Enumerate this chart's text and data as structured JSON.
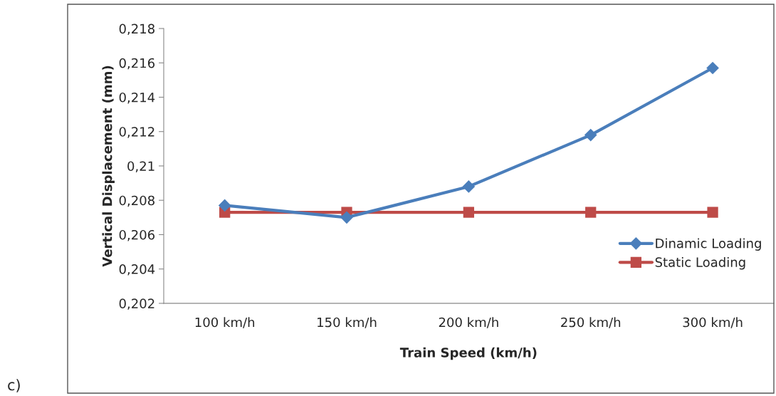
{
  "chart_data": {
    "type": "line",
    "xlabel": "Train Speed (km/h)",
    "ylabel": "Vertical Displacement (mm)",
    "categories": [
      "100 km/h",
      "150 km/h",
      "200 km/h",
      "250 km/h",
      "300 km/h"
    ],
    "series": [
      {
        "name": "Dinamic Loading",
        "color": "#4a7ebb",
        "marker": "diamond",
        "values": [
          0.2077,
          0.207,
          0.2088,
          0.2118,
          0.2157
        ]
      },
      {
        "name": "Static Loading",
        "color": "#be4b48",
        "marker": "square",
        "values": [
          0.2073,
          0.2073,
          0.2073,
          0.2073,
          0.2073
        ]
      }
    ],
    "ylim": [
      0.202,
      0.218
    ],
    "yticks": [
      {
        "value": 0.202,
        "label": "0,202"
      },
      {
        "value": 0.204,
        "label": "0,204"
      },
      {
        "value": 0.206,
        "label": "0,206"
      },
      {
        "value": 0.208,
        "label": "0,208"
      },
      {
        "value": 0.21,
        "label": "0,21"
      },
      {
        "value": 0.212,
        "label": "0,212"
      },
      {
        "value": 0.214,
        "label": "0,214"
      },
      {
        "value": 0.216,
        "label": "0,216"
      },
      {
        "value": 0.218,
        "label": "0,218"
      }
    ],
    "grid": false,
    "legend": "right",
    "line_style": "solid",
    "annotations": [
      "c)"
    ]
  }
}
